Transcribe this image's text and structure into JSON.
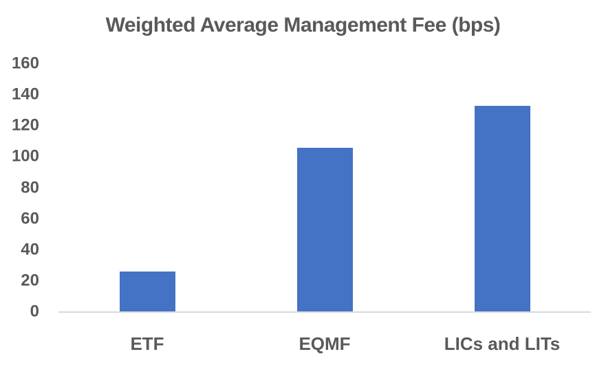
{
  "chart_data": {
    "type": "bar",
    "title": "Weighted Average Management Fee (bps)",
    "categories": [
      "ETF",
      "EQMF",
      "LICs and LITs"
    ],
    "values": [
      26,
      106,
      133
    ],
    "xlabel": "",
    "ylabel": "",
    "ylim": [
      0,
      160
    ],
    "yticks": [
      160,
      140,
      120,
      100,
      80,
      60,
      40,
      20,
      0
    ],
    "grid": false,
    "legend": false,
    "colors": {
      "bar": "#4472C4",
      "text": "#595959",
      "axis_line": "#D9D9D9",
      "background": "#FFFFFF"
    }
  }
}
